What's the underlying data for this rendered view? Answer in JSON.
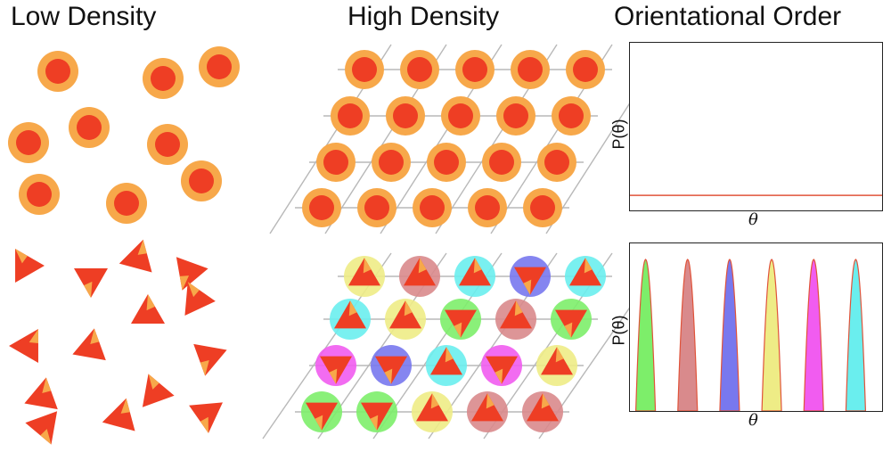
{
  "headings": {
    "low_density": "Low Density",
    "high_density": "High Density",
    "orientational_order": "Orientational Order"
  },
  "colors": {
    "disk_outer": "#f7a84a",
    "disk_inner": "#ee3e24",
    "triangle_main": "#ee3e24",
    "triangle_patch": "#f7a84a",
    "lattice_line": "#b8b8b8",
    "plot_line": "#e0533a",
    "halo_colors": [
      "#7dee6a",
      "#d98a8c",
      "#7878ee",
      "#eeec86",
      "#f15cf0",
      "#6aeeee"
    ]
  },
  "plots": {
    "top": {
      "ylabel": "P(θ)",
      "xlabel": "θ",
      "distribution": "uniform",
      "level": 0.09
    },
    "bottom": {
      "ylabel": "P(θ)",
      "xlabel": "θ",
      "distribution": "peaked",
      "peak_colors": [
        "#7dee6a",
        "#d98a8c",
        "#7878ee",
        "#eeec86",
        "#f15cf0",
        "#6aeeee"
      ]
    }
  },
  "lattice_halo_rows": [
    [
      "#7dee6a",
      "#7dee6a",
      "#eeec86",
      "#d98a8c",
      "#d98a8c"
    ],
    [
      "#f15cf0",
      "#7878ee",
      "#6aeeee",
      "#f15cf0",
      "#eeec86"
    ],
    [
      "#6aeeee",
      "#eeec86",
      "#7dee6a",
      "#d98a8c",
      "#7dee6a"
    ],
    [
      "#eeec86",
      "#d98a8c",
      "#6aeeee",
      "#7878ee",
      "#6aeeee"
    ]
  ],
  "lattice_triangle_orientation_rows": [
    [
      "down",
      "down",
      "up",
      "up",
      "up"
    ],
    [
      "down",
      "down",
      "up",
      "down",
      "up"
    ],
    [
      "up",
      "up",
      "down",
      "up",
      "down"
    ],
    [
      "up",
      "up",
      "up",
      "down",
      "up"
    ]
  ]
}
